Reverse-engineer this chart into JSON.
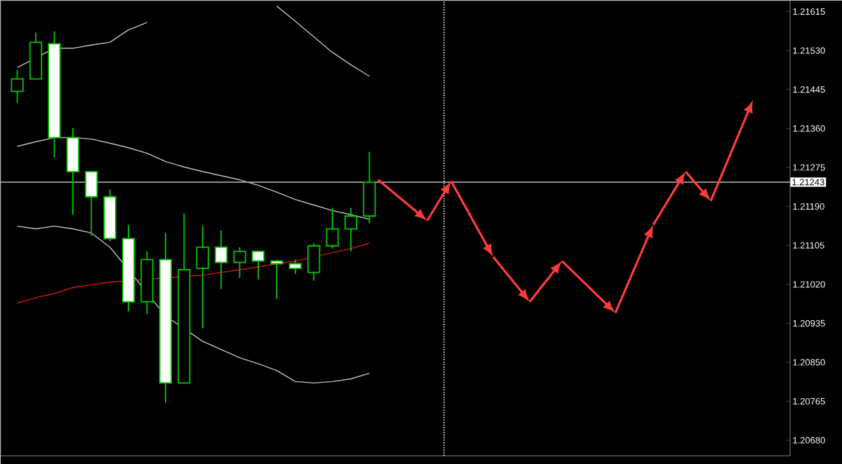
{
  "chart_data": {
    "type": "candlestick",
    "color": "#00c800",
    "tick_labels": "y",
    "categories": [
      null,
      null,
      null,
      null,
      null,
      null,
      null,
      null,
      null,
      null,
      null,
      null,
      null,
      null,
      null,
      null,
      null,
      null,
      null,
      null,
      null,
      null,
      null,
      null,
      null,
      null,
      null,
      null,
      null,
      null,
      null,
      null,
      null,
      null,
      null,
      null,
      null,
      null,
      null,
      null,
      null,
      null
    ],
    "ohlc": [
      [
        1.21441,
        1.21487,
        1.21416,
        1.21468
      ],
      [
        1.21468,
        1.21569,
        1.21468,
        1.21548
      ],
      [
        1.21545,
        1.21572,
        1.21297,
        1.2134
      ],
      [
        1.2134,
        1.21361,
        1.21172,
        1.21266
      ],
      [
        1.21266,
        1.21266,
        1.21126,
        1.21211
      ],
      [
        1.21211,
        1.21227,
        1.21114,
        1.2112
      ],
      [
        1.2112,
        1.2115,
        1.20961,
        1.20982
      ],
      [
        1.20982,
        1.21092,
        1.20955,
        1.21074
      ],
      [
        1.21074,
        1.21132,
        1.20762,
        1.20805
      ],
      [
        1.20805,
        1.21175,
        1.20805,
        1.21052
      ],
      [
        1.21055,
        1.21147,
        1.20924,
        1.21101
      ],
      [
        1.21101,
        1.21138,
        1.2101,
        1.21068
      ],
      [
        1.21068,
        1.21101,
        1.21034,
        1.21092
      ],
      [
        1.21092,
        1.21092,
        1.21031,
        1.21071
      ],
      [
        1.21071,
        1.21074,
        1.20988,
        1.21065
      ],
      [
        1.21065,
        1.21074,
        1.21043,
        1.21055
      ],
      [
        1.21046,
        1.2111,
        1.21028,
        1.21104
      ],
      [
        1.21104,
        1.21187,
        1.21098,
        1.21141
      ],
      [
        1.21141,
        1.21187,
        1.21092,
        1.21169
      ],
      [
        1.21169,
        1.21309,
        1.21153,
        1.21243
      ],
      null,
      null,
      null,
      null,
      null,
      null,
      null,
      null,
      null,
      null,
      null,
      null,
      null,
      null,
      null,
      null,
      null,
      null,
      null,
      null,
      null,
      null
    ],
    "series": [
      {
        "type": "line",
        "color": "#c0c0c0",
        "values": [
          1.21493,
          null,
          1.21535,
          1.21535,
          1.21542,
          1.21548,
          1.21575,
          1.21591,
          null,
          null,
          null,
          null,
          null,
          null,
          null,
          null,
          null,
          null,
          null,
          null,
          null,
          null,
          null,
          null,
          null,
          null,
          null,
          null,
          null,
          null,
          null,
          null,
          null,
          null,
          null,
          null,
          null,
          null,
          null,
          null,
          null,
          null
        ]
      },
      {
        "type": "line",
        "color": "#c0c0c0",
        "values": [
          null,
          null,
          null,
          null,
          null,
          null,
          null,
          null,
          null,
          null,
          null,
          null,
          null,
          null,
          1.21627,
          1.21594,
          1.2156,
          1.21526,
          1.21499,
          1.21474,
          null,
          null,
          null,
          null,
          null,
          null,
          null,
          null,
          null,
          null,
          null,
          null,
          null,
          null,
          null,
          null,
          null,
          null,
          null,
          null,
          null,
          null
        ]
      },
      {
        "type": "line",
        "color": "#c0c0c0",
        "values": [
          1.21321,
          1.21331,
          1.2134,
          1.2134,
          1.21337,
          1.21328,
          1.21318,
          1.21306,
          1.21288,
          1.21276,
          1.21266,
          1.21257,
          1.21248,
          1.21236,
          1.21221,
          1.21205,
          1.21193,
          1.21181,
          1.21172,
          1.21162,
          null,
          null,
          null,
          null,
          null,
          null,
          null,
          null,
          null,
          null,
          null,
          null,
          null,
          null,
          null,
          null,
          null,
          null,
          null,
          null,
          null,
          null
        ]
      },
      {
        "type": "line",
        "color": "#c0c0c0",
        "values": [
          1.21147,
          1.21141,
          1.21147,
          1.21141,
          1.21132,
          1.21101,
          1.21052,
          null,
          1.20951,
          null,
          1.20896,
          1.20878,
          1.2086,
          1.20847,
          1.20832,
          1.20808,
          1.20805,
          1.20808,
          1.20814,
          1.20826,
          null,
          null,
          null,
          null,
          null,
          null,
          null,
          null,
          null,
          null,
          null,
          null,
          null,
          null,
          null,
          null,
          null,
          null,
          null,
          null,
          null,
          null
        ]
      },
      {
        "type": "line",
        "color": "#d01818",
        "values": [
          1.20979,
          1.20991,
          1.21,
          1.21013,
          1.21019,
          1.21025,
          null,
          null,
          null,
          null,
          1.2104,
          1.21046,
          1.21052,
          1.21058,
          1.21065,
          1.21071,
          null,
          1.21089,
          1.21098,
          1.2111,
          null,
          null,
          null,
          null,
          null,
          null,
          null,
          null,
          null,
          null,
          null,
          null,
          null,
          null,
          null,
          null,
          null,
          null,
          null,
          null,
          null,
          null
        ]
      }
    ],
    "ylim": [
      1.20646,
      1.21639
    ],
    "yticks": [
      {
        "value": 1.2068,
        "label": "1.20680"
      },
      {
        "value": 1.20765,
        "label": "1.20765"
      },
      {
        "value": 1.2085,
        "label": "1.20850"
      },
      {
        "value": 1.20935,
        "label": "1.20935"
      },
      {
        "value": 1.2102,
        "label": "1.21020"
      },
      {
        "value": 1.21105,
        "label": "1.21105"
      },
      {
        "value": 1.2119,
        "label": "1.21190"
      },
      {
        "value": 1.21275,
        "label": "1.21275"
      },
      {
        "value": 1.2136,
        "label": "1.21360"
      },
      {
        "value": 1.21445,
        "label": "1.21445"
      },
      {
        "value": 1.2153,
        "label": "1.21530"
      },
      {
        "value": 1.21615,
        "label": "1.21615"
      }
    ],
    "ref_lines": [
      {
        "axis": "y",
        "value": 1.21243,
        "label": "1.21243",
        "color": "#a0a0a0"
      }
    ]
  }
}
